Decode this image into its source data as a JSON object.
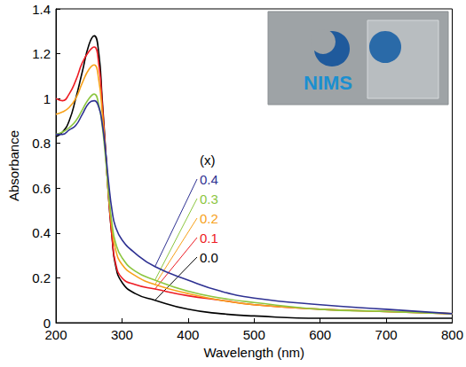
{
  "chart_data": {
    "type": "line",
    "xlabel": "Wavelength (nm)",
    "ylabel": "Absorbance",
    "annotations": [
      "(x)",
      "NIMS"
    ],
    "x": [
      200,
      210,
      220,
      230,
      240,
      250,
      258,
      265,
      270,
      275,
      280,
      285,
      290,
      300,
      320,
      350,
      400,
      450,
      500,
      600,
      700,
      800
    ],
    "series": [
      {
        "name": "0.0",
        "color": "#000000",
        "values": [
          0.83,
          0.85,
          0.9,
          1.0,
          1.12,
          1.24,
          1.28,
          1.2,
          1.0,
          0.78,
          0.55,
          0.38,
          0.26,
          0.18,
          0.13,
          0.1,
          0.06,
          0.04,
          0.03,
          0.02,
          0.02,
          0.02
        ]
      },
      {
        "name": "0.1",
        "color": "#ed1c24",
        "values": [
          1.0,
          0.99,
          1.02,
          1.08,
          1.16,
          1.21,
          1.23,
          1.15,
          0.98,
          0.77,
          0.55,
          0.38,
          0.27,
          0.2,
          0.17,
          0.15,
          0.12,
          0.1,
          0.08,
          0.06,
          0.05,
          0.04
        ]
      },
      {
        "name": "0.2",
        "color": "#f7a11a",
        "values": [
          0.93,
          0.94,
          0.96,
          1.0,
          1.07,
          1.13,
          1.15,
          1.08,
          0.94,
          0.76,
          0.56,
          0.42,
          0.33,
          0.26,
          0.21,
          0.17,
          0.13,
          0.1,
          0.08,
          0.06,
          0.05,
          0.04
        ]
      },
      {
        "name": "0.3",
        "color": "#8cc63f",
        "values": [
          0.84,
          0.85,
          0.87,
          0.9,
          0.95,
          1.0,
          1.02,
          0.97,
          0.88,
          0.74,
          0.57,
          0.44,
          0.36,
          0.29,
          0.23,
          0.19,
          0.14,
          0.11,
          0.09,
          0.06,
          0.05,
          0.04
        ]
      },
      {
        "name": "0.4",
        "color": "#2e3192",
        "values": [
          0.84,
          0.84,
          0.86,
          0.88,
          0.93,
          0.98,
          0.99,
          0.96,
          0.89,
          0.77,
          0.62,
          0.5,
          0.43,
          0.37,
          0.31,
          0.25,
          0.19,
          0.14,
          0.11,
          0.08,
          0.06,
          0.04
        ]
      }
    ],
    "xlim": [
      200,
      800
    ],
    "xticks": [
      200,
      300,
      400,
      500,
      600,
      700,
      800
    ],
    "ylim": [
      0,
      1.4
    ],
    "yticks": [
      0,
      0.2,
      0.4,
      0.6,
      0.8,
      1,
      1.2,
      1.4
    ],
    "grid": false
  }
}
